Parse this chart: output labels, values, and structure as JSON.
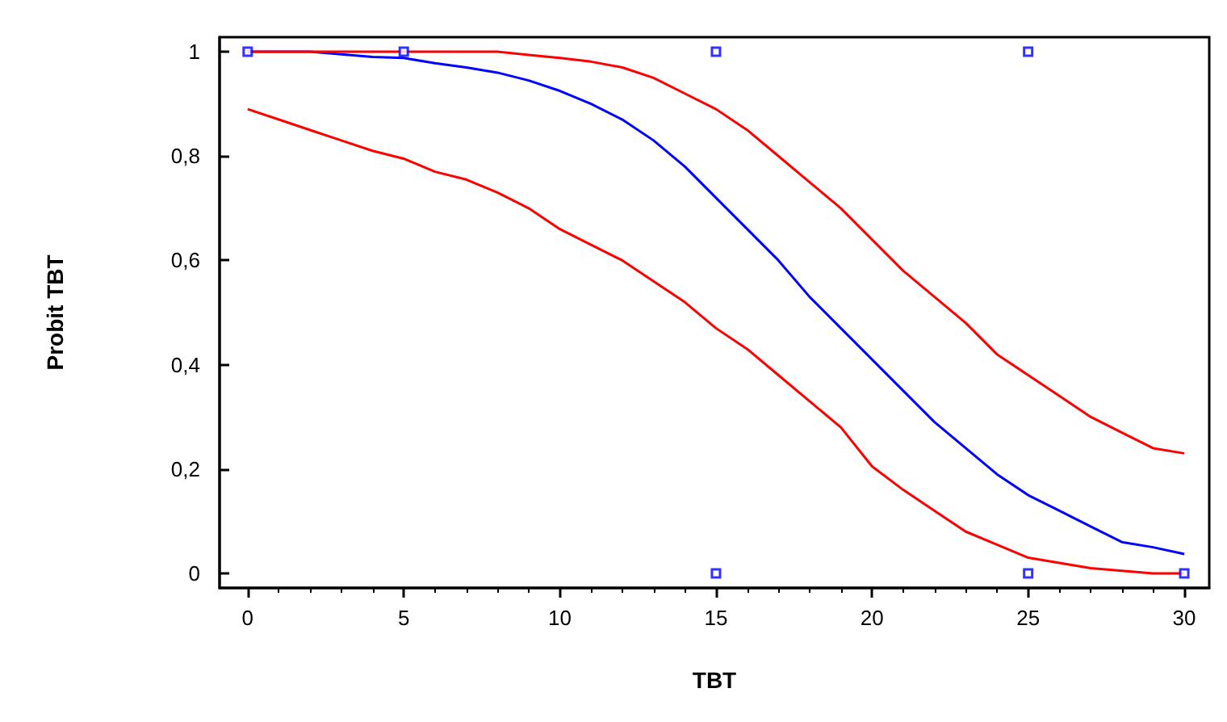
{
  "chart_data": {
    "type": "line",
    "xlabel": "TBT",
    "ylabel": "Probit TBT",
    "x": [
      0,
      1,
      2,
      3,
      4,
      5,
      6,
      7,
      8,
      9,
      10,
      11,
      12,
      13,
      14,
      15,
      16,
      17,
      18,
      19,
      20,
      21,
      22,
      23,
      24,
      25,
      26,
      27,
      28,
      29,
      30
    ],
    "series": [
      {
        "color": "#0000ff",
        "values": [
          1,
          1,
          1,
          0.995,
          0.99,
          0.988,
          0.978,
          0.97,
          0.96,
          0.945,
          0.925,
          0.9,
          0.87,
          0.83,
          0.78,
          0.72,
          0.66,
          0.6,
          0.53,
          0.47,
          0.41,
          0.35,
          0.29,
          0.24,
          0.19,
          0.15,
          0.12,
          0.09,
          0.06,
          0.05,
          0.037
        ]
      },
      {
        "color": "#ff0000",
        "values": [
          1,
          1,
          1,
          1,
          1,
          1,
          1,
          1,
          1,
          0.994,
          0.988,
          0.981,
          0.97,
          0.95,
          0.92,
          0.89,
          0.85,
          0.8,
          0.75,
          0.7,
          0.64,
          0.58,
          0.53,
          0.48,
          0.42,
          0.38,
          0.34,
          0.3,
          0.27,
          0.24,
          0.23
        ]
      },
      {
        "color": "#ff0000",
        "values": [
          0.89,
          0.87,
          0.85,
          0.83,
          0.81,
          0.795,
          0.77,
          0.755,
          0.73,
          0.7,
          0.66,
          0.63,
          0.6,
          0.56,
          0.52,
          0.47,
          0.43,
          0.38,
          0.33,
          0.28,
          0.205,
          0.16,
          0.12,
          0.08,
          0.055,
          0.03,
          0.02,
          0.01,
          0.005,
          0,
          0
        ]
      },
      {
        "type": "scatter",
        "color": "#0000ff",
        "marker": "square",
        "x": [
          0,
          5,
          15,
          25,
          15,
          25,
          30
        ],
        "values": [
          1,
          1,
          1,
          1,
          0,
          0,
          0
        ]
      }
    ],
    "xlim": [
      -0.9,
      30.8
    ],
    "xticks": [
      0,
      5,
      10,
      15,
      20,
      25,
      30
    ],
    "ylim": [
      -0.028,
      1.028
    ],
    "yticks": [
      0,
      {
        "value": 0.2,
        "label": "0,2"
      },
      {
        "value": 0.4,
        "label": "0,4"
      },
      {
        "value": 0.6,
        "label": "0,6"
      },
      {
        "value": 0.8,
        "label": "0,8"
      },
      1
    ],
    "marker": "none",
    "line_style": "solid"
  }
}
